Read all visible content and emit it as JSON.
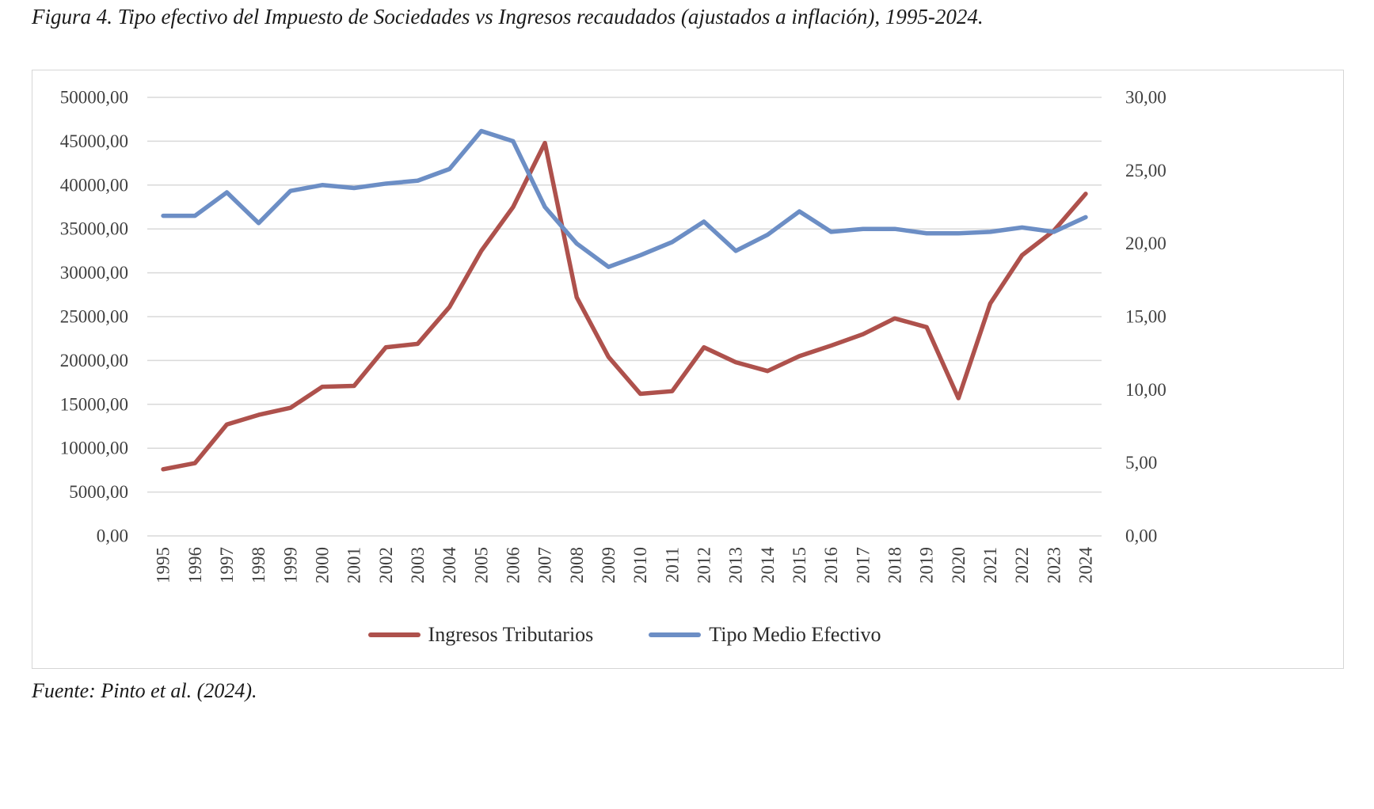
{
  "figure": {
    "caption": "Figura 4. Tipo efectivo del Impuesto de Sociedades vs Ingresos recaudados (ajustados a inflación), 1995-2024.",
    "source": "Fuente: Pinto et al. (2024)."
  },
  "chart_data": {
    "type": "line",
    "title": "Figura 4. Tipo efectivo del Impuesto de Sociedades vs Ingresos recaudados (ajustados a inflación), 1995-2024.",
    "xlabel": "",
    "ylabel_left": "",
    "ylabel_right": "",
    "grid": true,
    "legend_position": "bottom",
    "x": [
      "1995",
      "1996",
      "1997",
      "1998",
      "1999",
      "2000",
      "2001",
      "2002",
      "2003",
      "2004",
      "2005",
      "2006",
      "2007",
      "2008",
      "2009",
      "2010",
      "2011",
      "2012",
      "2013",
      "2014",
      "2015",
      "2016",
      "2017",
      "2018",
      "2019",
      "2020",
      "2021",
      "2022",
      "2023",
      "2024"
    ],
    "series": [
      {
        "name": "Ingresos Tributarios",
        "axis": "left",
        "color": "#AE514C",
        "values": [
          7600,
          8300,
          12700,
          13800,
          14600,
          17000,
          17100,
          21500,
          21900,
          26100,
          32500,
          37500,
          44800,
          27200,
          20400,
          16200,
          16500,
          21500,
          19800,
          18800,
          20500,
          21700,
          23000,
          24800,
          23800,
          15700,
          26500,
          32000,
          34800,
          39000
        ]
      },
      {
        "name": "Tipo Medio Efectivo",
        "axis": "right",
        "color": "#6C8EC5",
        "values": [
          21.9,
          21.9,
          23.5,
          21.4,
          23.6,
          24.0,
          23.8,
          24.1,
          24.3,
          25.1,
          27.7,
          27.0,
          22.5,
          20.0,
          18.4,
          19.2,
          20.1,
          21.5,
          19.5,
          20.6,
          22.2,
          20.8,
          21.0,
          21.0,
          20.7,
          20.7,
          20.8,
          21.1,
          20.8,
          21.8
        ]
      }
    ],
    "left_axis": {
      "min": 0,
      "max": 50000,
      "ticks": [
        "0,00",
        "5000,00",
        "10000,00",
        "15000,00",
        "20000,00",
        "25000,00",
        "30000,00",
        "35000,00",
        "40000,00",
        "45000,00",
        "50000,00"
      ]
    },
    "right_axis": {
      "min": 0,
      "max": 30,
      "ticks": [
        "0,00",
        "5,00",
        "10,00",
        "15,00",
        "20,00",
        "25,00",
        "30,00"
      ]
    },
    "colors": {
      "grid": "#d9d9d9",
      "tick_text": "#3f3f3f",
      "plot_border": "#d6d6d6"
    }
  }
}
